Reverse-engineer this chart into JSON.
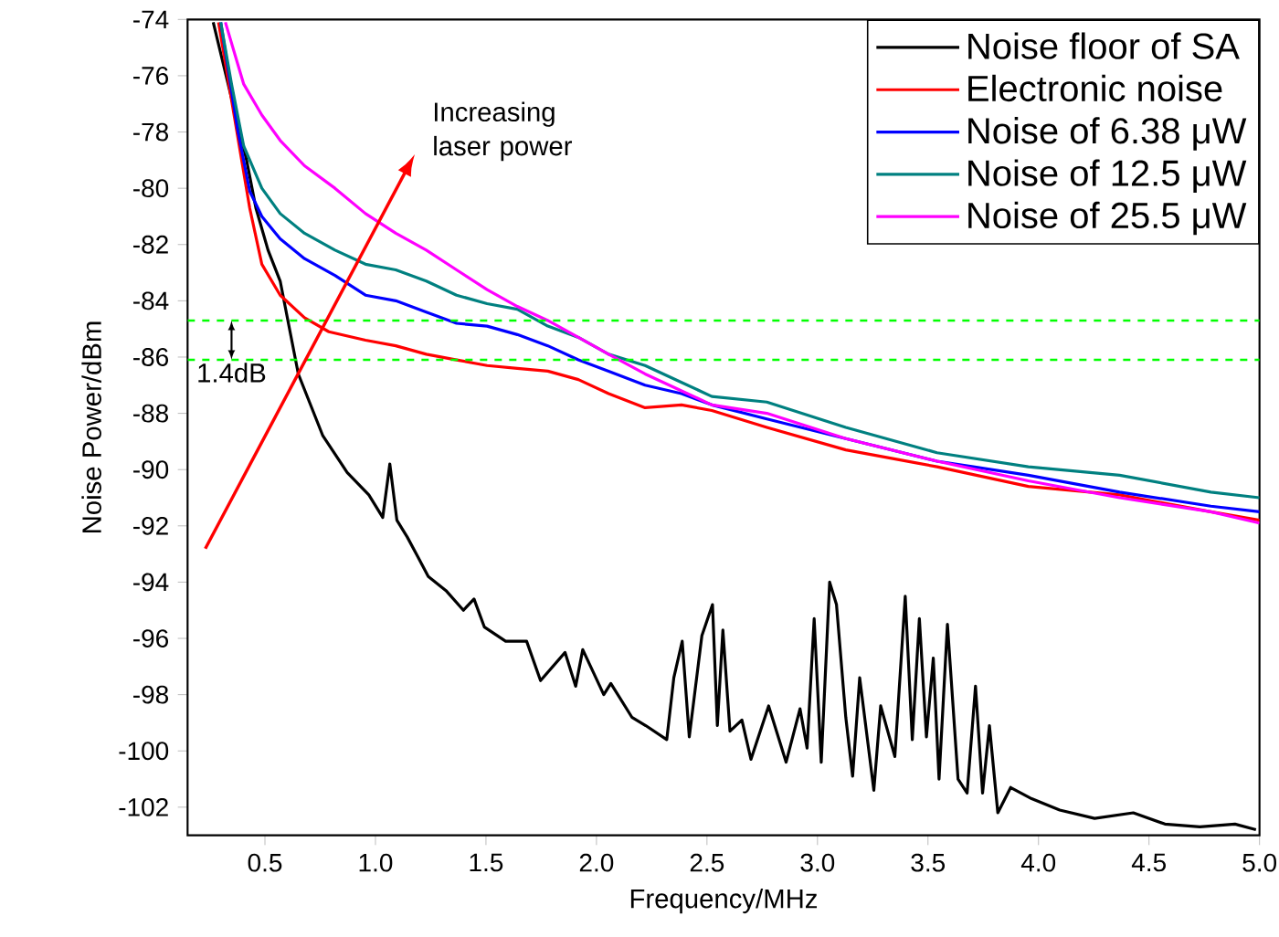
{
  "chart_data": {
    "type": "line",
    "xlabel": "Frequency/MHz",
    "ylabel": "Noise Power/dBm",
    "xlim": [
      0.15,
      5.0
    ],
    "ylim": [
      -103,
      -74
    ],
    "xticks": [
      {
        "value": 0.5,
        "label": "0.5"
      },
      {
        "value": 1.0,
        "label": "1.0"
      },
      {
        "value": 1.5,
        "label": "1.5"
      },
      {
        "value": 2.0,
        "label": "2.0"
      },
      {
        "value": 2.5,
        "label": "2.5"
      },
      {
        "value": 3.0,
        "label": "3.0"
      },
      {
        "value": 3.5,
        "label": "3.5"
      },
      {
        "value": 4.0,
        "label": "4.0"
      },
      {
        "value": 4.5,
        "label": "4.5"
      },
      {
        "value": 5.0,
        "label": "5.0"
      }
    ],
    "yticks": [
      -74,
      -76,
      -78,
      -80,
      -82,
      -84,
      -86,
      -88,
      -90,
      -92,
      -94,
      -96,
      -98,
      -100,
      -102
    ],
    "legend": "top right",
    "grid": false,
    "series": [
      {
        "name": "Noise floor of SA",
        "color": "#000000",
        "x": [
          0.266,
          0.349,
          0.417,
          0.459,
          0.514,
          0.569,
          0.651,
          0.762,
          0.872,
          0.97,
          1.033,
          1.065,
          1.097,
          1.144,
          1.192,
          1.239,
          1.319,
          1.398,
          1.446,
          1.493,
          1.589,
          1.684,
          1.747,
          1.858,
          1.906,
          1.938,
          2.033,
          2.065,
          2.16,
          2.223,
          2.318,
          2.35,
          2.388,
          2.42,
          2.477,
          2.525,
          2.547,
          2.572,
          2.604,
          2.658,
          2.699,
          2.779,
          2.858,
          2.921,
          2.953,
          2.985,
          3.017,
          3.055,
          3.086,
          3.128,
          3.159,
          3.191,
          3.255,
          3.286,
          3.35,
          3.397,
          3.429,
          3.461,
          3.493,
          3.524,
          3.55,
          3.588,
          3.636,
          3.677,
          3.715,
          3.747,
          3.778,
          3.816,
          3.874,
          3.969,
          4.096,
          4.254,
          4.429,
          4.572,
          4.73,
          4.889,
          4.984
        ],
        "values": [
          -74.1,
          -76.8,
          -79.0,
          -80.7,
          -82.2,
          -83.3,
          -86.6,
          -88.8,
          -90.1,
          -90.9,
          -91.7,
          -89.8,
          -91.8,
          -92.4,
          -93.1,
          -93.8,
          -94.3,
          -95.0,
          -94.6,
          -95.6,
          -96.1,
          -96.1,
          -97.5,
          -96.5,
          -97.7,
          -96.4,
          -98.0,
          -97.6,
          -98.8,
          -99.1,
          -99.6,
          -97.4,
          -96.1,
          -99.5,
          -95.9,
          -94.8,
          -99.1,
          -95.7,
          -99.3,
          -98.9,
          -100.3,
          -98.4,
          -100.4,
          -98.5,
          -99.9,
          -95.3,
          -100.4,
          -94.0,
          -94.8,
          -98.8,
          -100.9,
          -97.4,
          -101.4,
          -98.4,
          -100.2,
          -94.5,
          -99.6,
          -95.3,
          -99.5,
          -96.7,
          -101.0,
          -95.5,
          -101.0,
          -101.5,
          -97.7,
          -101.5,
          -99.1,
          -102.2,
          -101.3,
          -101.7,
          -102.1,
          -102.4,
          -102.2,
          -102.6,
          -102.7,
          -102.6,
          -102.8
        ]
      },
      {
        "name": "Electronic noise",
        "color": "#ff0000",
        "x": [
          0.29,
          0.431,
          0.486,
          0.569,
          0.679,
          0.789,
          0.955,
          1.092,
          1.23,
          1.367,
          1.505,
          1.642,
          1.78,
          1.918,
          2.055,
          2.22,
          2.385,
          2.522,
          2.771,
          3.128,
          3.541,
          3.954,
          4.367,
          4.78,
          5.0
        ],
        "values": [
          -74.1,
          -80.7,
          -82.7,
          -83.8,
          -84.6,
          -85.1,
          -85.4,
          -85.6,
          -85.9,
          -86.1,
          -86.3,
          -86.4,
          -86.5,
          -86.8,
          -87.3,
          -87.8,
          -87.7,
          -87.9,
          -88.5,
          -89.3,
          -89.9,
          -90.6,
          -90.9,
          -91.5,
          -91.8
        ]
      },
      {
        "name": "Noise of  6.38 μW",
        "color": "#0000ff",
        "x": [
          0.3,
          0.376,
          0.431,
          0.486,
          0.569,
          0.679,
          0.817,
          0.955,
          1.092,
          1.23,
          1.367,
          1.505,
          1.642,
          1.78,
          1.918,
          2.055,
          2.22,
          2.385,
          2.522,
          2.771,
          3.128,
          3.541,
          3.954,
          4.367,
          4.78,
          5.0
        ],
        "values": [
          -74.1,
          -77.9,
          -80.1,
          -81.0,
          -81.8,
          -82.5,
          -83.1,
          -83.8,
          -84.0,
          -84.4,
          -84.8,
          -84.9,
          -85.2,
          -85.6,
          -86.1,
          -86.5,
          -87.0,
          -87.3,
          -87.7,
          -88.2,
          -88.9,
          -89.7,
          -90.2,
          -90.8,
          -91.3,
          -91.5
        ]
      },
      {
        "name": "Noise of  12.5 μW",
        "color": "#008080",
        "x": [
          0.3,
          0.349,
          0.404,
          0.486,
          0.569,
          0.679,
          0.817,
          0.955,
          1.092,
          1.23,
          1.367,
          1.505,
          1.642,
          1.78,
          1.918,
          2.055,
          2.22,
          2.385,
          2.522,
          2.771,
          3.128,
          3.541,
          3.954,
          4.367,
          4.78,
          5.0
        ],
        "values": [
          -74.1,
          -76.3,
          -78.5,
          -80.0,
          -80.9,
          -81.6,
          -82.2,
          -82.7,
          -82.9,
          -83.3,
          -83.8,
          -84.1,
          -84.3,
          -84.9,
          -85.3,
          -85.9,
          -86.3,
          -86.9,
          -87.4,
          -87.6,
          -88.5,
          -89.4,
          -89.9,
          -90.2,
          -90.8,
          -91.0
        ]
      },
      {
        "name": "Noise of  25.5 μW",
        "color": "#ff00ff",
        "x": [
          0.321,
          0.404,
          0.486,
          0.569,
          0.679,
          0.817,
          0.955,
          1.092,
          1.23,
          1.367,
          1.505,
          1.642,
          1.78,
          1.918,
          2.055,
          2.22,
          2.385,
          2.522,
          2.771,
          3.128,
          3.541,
          3.954,
          4.367,
          4.78,
          5.0
        ],
        "values": [
          -74.1,
          -76.3,
          -77.4,
          -78.3,
          -79.2,
          -80.0,
          -80.9,
          -81.6,
          -82.2,
          -82.9,
          -83.6,
          -84.2,
          -84.7,
          -85.3,
          -85.9,
          -86.6,
          -87.2,
          -87.7,
          -88.0,
          -88.9,
          -89.7,
          -90.4,
          -91.0,
          -91.5,
          -91.9
        ]
      }
    ],
    "ref_lines": [
      {
        "axis": "y",
        "value": -84.7,
        "color": "#00ff00",
        "line_style": "dashed"
      },
      {
        "axis": "y",
        "value": -86.1,
        "color": "#00ff00",
        "line_style": "dashed"
      }
    ],
    "annotations": [
      "Increasing laser power",
      "1.4dB"
    ]
  }
}
